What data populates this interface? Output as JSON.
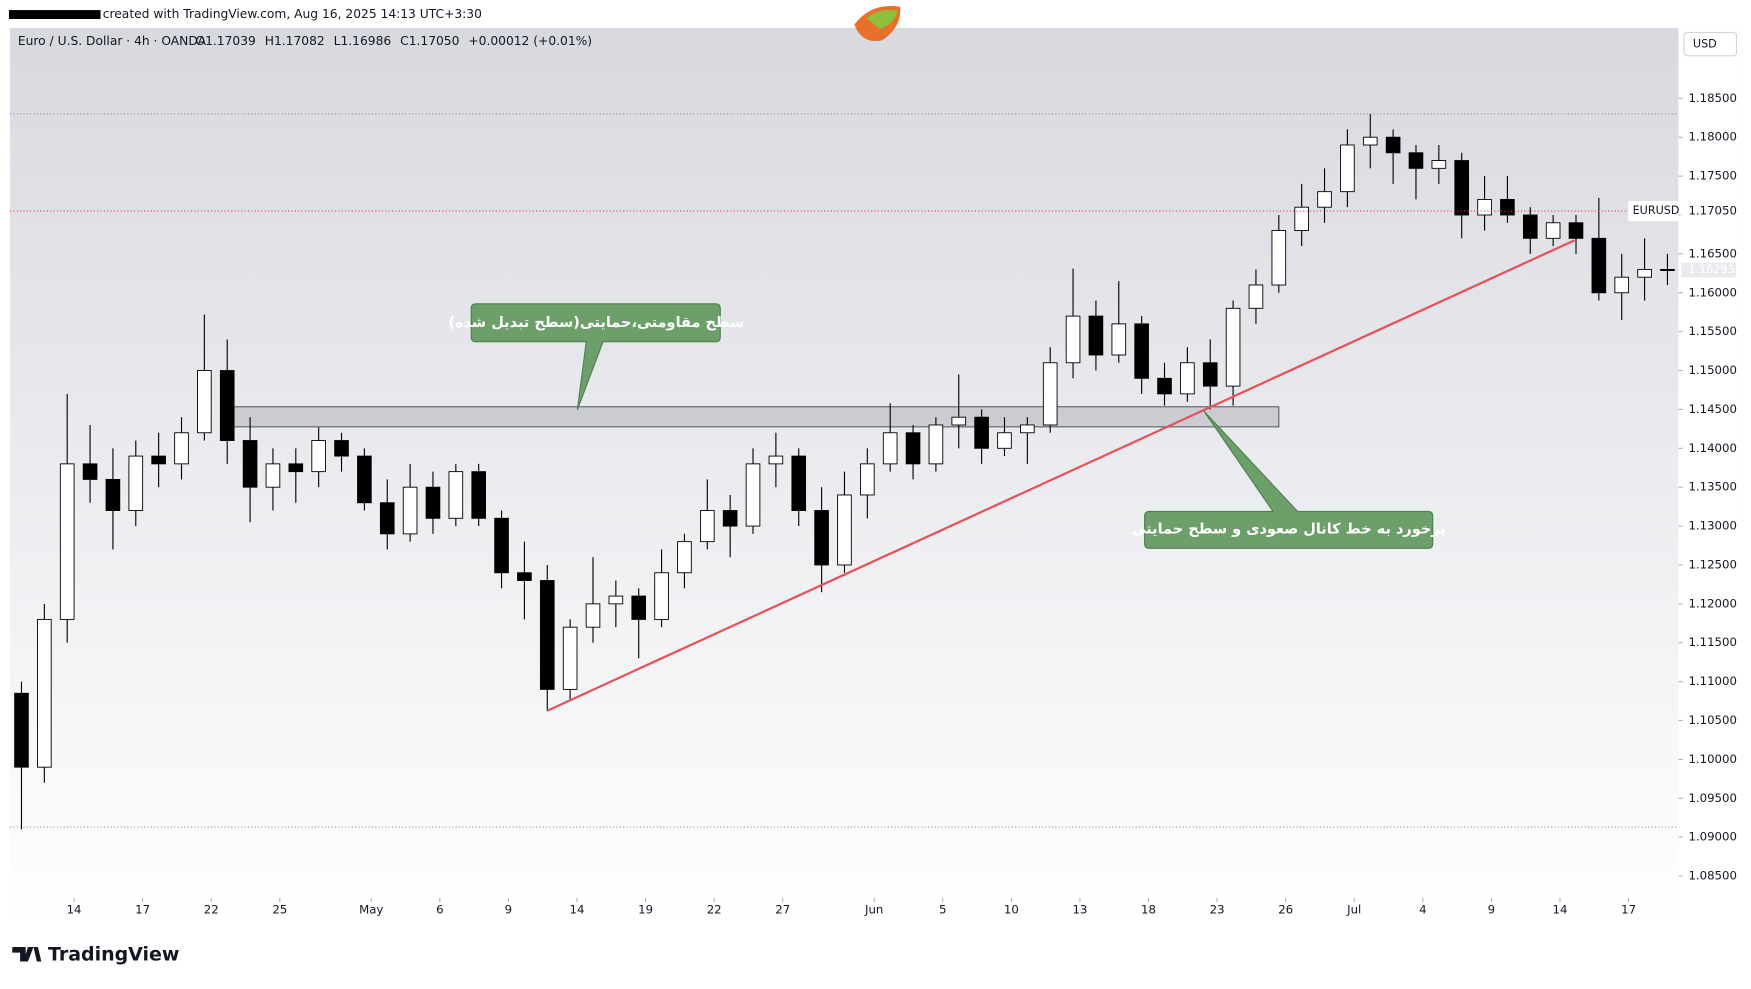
{
  "header": {
    "created": "created with TradingView.com, Aug 16, 2025 14:13 UTC+3:30",
    "brand": "TradingView"
  },
  "chart_data": {
    "type": "candlestick",
    "title": "Euro / U.S. Dollar · 4h · OANDA",
    "ohlc_legend": [
      {
        "value": 1.17039,
        "label": "O1.17039"
      },
      {
        "value": 1.17082,
        "label": "H1.17082"
      },
      {
        "value": 1.16986,
        "label": "L1.16986"
      },
      {
        "value": 1.1705,
        "label": "C1.17050"
      },
      {
        "value": 0.00012,
        "label": "+0.00012 (+0.01%)"
      }
    ],
    "symbol": "EURUSD",
    "currency": "USD",
    "up_color": "#ffffff",
    "down_color": "#000000",
    "wick_color": "#000000",
    "x": [
      0.5,
      1.5,
      2.5,
      3.5,
      4.5,
      5.5,
      6.5,
      7.5,
      8.5,
      9.5,
      10.5,
      11.5,
      12.5,
      13.5,
      14.5,
      15.5,
      16.5,
      17.5,
      18.5,
      19.5,
      20.5,
      21.5,
      22.5,
      23.5,
      24.5,
      25.5,
      26.5,
      27.5,
      28.5,
      29.5,
      30.5,
      31.5,
      32.5,
      33.5,
      34.5,
      35.5,
      36.5,
      37.5,
      38.5,
      39.5,
      40.5,
      41.5,
      42.5,
      43.5,
      44.5,
      45.5,
      46.5,
      47.5,
      48.5,
      49.5,
      50.5,
      51.5,
      52.5,
      53.5,
      54.5,
      55.5,
      56.5,
      57.5,
      58.5,
      59.5,
      60.5,
      61.5,
      62.5,
      63.5,
      64.5,
      65.5,
      66.5,
      67.5,
      68.5,
      69.5,
      70.5,
      71.5,
      72.5
    ],
    "open": [
      1.1085,
      1.099,
      1.118,
      1.138,
      1.136,
      1.132,
      1.139,
      1.138,
      1.142,
      1.15,
      1.141,
      1.135,
      1.138,
      1.137,
      1.141,
      1.139,
      1.133,
      1.129,
      1.135,
      1.131,
      1.137,
      1.131,
      1.124,
      1.123,
      1.109,
      1.117,
      1.12,
      1.121,
      1.118,
      1.124,
      1.128,
      1.132,
      1.13,
      1.138,
      1.139,
      1.132,
      1.125,
      1.134,
      1.138,
      1.142,
      1.138,
      1.143,
      1.144,
      1.14,
      1.142,
      1.143,
      1.151,
      1.157,
      1.152,
      1.156,
      1.149,
      1.147,
      1.151,
      1.148,
      1.158,
      1.161,
      1.168,
      1.171,
      1.173,
      1.179,
      1.18,
      1.178,
      1.176,
      1.177,
      1.17,
      1.172,
      1.17,
      1.167,
      1.169,
      1.167,
      1.16,
      1.162,
      1.163
    ],
    "high": [
      1.11,
      1.12,
      1.147,
      1.143,
      1.14,
      1.141,
      1.142,
      1.144,
      1.1572,
      1.154,
      1.144,
      1.14,
      1.14,
      1.1427,
      1.142,
      1.14,
      1.136,
      1.138,
      1.137,
      1.138,
      1.138,
      1.132,
      1.128,
      1.125,
      1.118,
      1.126,
      1.123,
      1.122,
      1.127,
      1.129,
      1.136,
      1.134,
      1.14,
      1.142,
      1.14,
      1.135,
      1.137,
      1.14,
      1.1458,
      1.143,
      1.144,
      1.1495,
      1.145,
      1.144,
      1.144,
      1.153,
      1.1631,
      1.159,
      1.1615,
      1.157,
      1.151,
      1.153,
      1.154,
      1.159,
      1.163,
      1.17,
      1.174,
      1.176,
      1.181,
      1.183,
      1.181,
      1.179,
      1.179,
      1.178,
      1.175,
      1.175,
      1.171,
      1.17,
      1.17,
      1.1722,
      1.165,
      1.167,
      1.165
    ],
    "low": [
      1.091,
      1.097,
      1.115,
      1.133,
      1.127,
      1.13,
      1.135,
      1.136,
      1.141,
      1.138,
      1.1305,
      1.132,
      1.133,
      1.135,
      1.137,
      1.132,
      1.127,
      1.128,
      1.129,
      1.13,
      1.13,
      1.122,
      1.118,
      1.1062,
      1.1075,
      1.115,
      1.117,
      1.113,
      1.117,
      1.122,
      1.127,
      1.126,
      1.129,
      1.135,
      1.13,
      1.1215,
      1.124,
      1.131,
      1.137,
      1.136,
      1.137,
      1.14,
      1.138,
      1.139,
      1.138,
      1.142,
      1.149,
      1.15,
      1.151,
      1.147,
      1.1455,
      1.146,
      1.145,
      1.1455,
      1.156,
      1.16,
      1.166,
      1.169,
      1.171,
      1.176,
      1.174,
      1.172,
      1.174,
      1.167,
      1.168,
      1.169,
      1.165,
      1.166,
      1.165,
      1.159,
      1.1565,
      1.159,
      1.161
    ],
    "close": [
      1.099,
      1.118,
      1.138,
      1.136,
      1.132,
      1.139,
      1.138,
      1.142,
      1.15,
      1.141,
      1.135,
      1.138,
      1.137,
      1.141,
      1.139,
      1.133,
      1.129,
      1.135,
      1.131,
      1.137,
      1.131,
      1.124,
      1.123,
      1.109,
      1.117,
      1.12,
      1.121,
      1.118,
      1.124,
      1.128,
      1.132,
      1.13,
      1.138,
      1.139,
      1.132,
      1.125,
      1.134,
      1.138,
      1.142,
      1.138,
      1.143,
      1.144,
      1.14,
      1.142,
      1.143,
      1.151,
      1.157,
      1.152,
      1.156,
      1.149,
      1.147,
      1.151,
      1.148,
      1.158,
      1.161,
      1.168,
      1.171,
      1.173,
      1.179,
      1.18,
      1.178,
      1.176,
      1.177,
      1.17,
      1.172,
      1.17,
      1.167,
      1.169,
      1.167,
      1.16,
      1.162,
      1.163,
      1.1629
    ],
    "xlim": [
      0,
      72.98
    ],
    "xticks": [
      {
        "value": 2.8,
        "label": "14"
      },
      {
        "value": 5.8,
        "label": "17"
      },
      {
        "value": 8.8,
        "label": "22"
      },
      {
        "value": 11.8,
        "label": "25"
      },
      {
        "value": 15.8,
        "label": "May"
      },
      {
        "value": 18.8,
        "label": "6"
      },
      {
        "value": 21.8,
        "label": "9"
      },
      {
        "value": 24.8,
        "label": "14"
      },
      {
        "value": 27.8,
        "label": "19"
      },
      {
        "value": 30.8,
        "label": "22"
      },
      {
        "value": 33.8,
        "label": "27"
      },
      {
        "value": 37.8,
        "label": "Jun"
      },
      {
        "value": 40.8,
        "label": "5"
      },
      {
        "value": 43.8,
        "label": "10"
      },
      {
        "value": 46.8,
        "label": "13"
      },
      {
        "value": 49.8,
        "label": "18"
      },
      {
        "value": 52.8,
        "label": "23"
      },
      {
        "value": 55.8,
        "label": "26"
      },
      {
        "value": 58.8,
        "label": "Jul"
      },
      {
        "value": 61.8,
        "label": "4"
      },
      {
        "value": 64.8,
        "label": "9"
      },
      {
        "value": 67.8,
        "label": "14"
      },
      {
        "value": 70.8,
        "label": "17"
      }
    ],
    "ylim": [
      1.08277,
      1.19405
    ],
    "yticks": [
      {
        "value": 1.085,
        "label": "1.08500"
      },
      {
        "value": 1.09,
        "label": "1.09000"
      },
      {
        "value": 1.095,
        "label": "1.09500"
      },
      {
        "value": 1.1,
        "label": "1.10000"
      },
      {
        "value": 1.105,
        "label": "1.10500"
      },
      {
        "value": 1.11,
        "label": "1.11000"
      },
      {
        "value": 1.115,
        "label": "1.11500"
      },
      {
        "value": 1.12,
        "label": "1.12000"
      },
      {
        "value": 1.125,
        "label": "1.12500"
      },
      {
        "value": 1.13,
        "label": "1.13000"
      },
      {
        "value": 1.135,
        "label": "1.13500"
      },
      {
        "value": 1.14,
        "label": "1.14000"
      },
      {
        "value": 1.145,
        "label": "1.14500"
      },
      {
        "value": 1.15,
        "label": "1.15000"
      },
      {
        "value": 1.155,
        "label": "1.15500"
      },
      {
        "value": 1.16,
        "label": "1.16000"
      },
      {
        "value": 1.165,
        "label": "1.16500"
      },
      {
        "value": 1.17,
        "label": "1.17000"
      },
      {
        "value": 1.175,
        "label": "1.17500"
      },
      {
        "value": 1.18,
        "label": "1.18000"
      },
      {
        "value": 1.185,
        "label": "1.18500"
      }
    ],
    "current_price": {
      "value": 1.1705,
      "label": "1.17050",
      "color": "#f23645"
    },
    "marker_price": {
      "value": 1.16293,
      "label": "1.16293"
    },
    "price_lines": [
      1.183,
      1.0913
    ],
    "zone": {
      "x": [
        9.57,
        55.5
      ],
      "y": [
        1.14276,
        1.14534
      ],
      "color": "#9598a1"
    },
    "trendline": {
      "x": [
        23.5,
        68.44
      ],
      "y": [
        1.10626,
        1.16675
      ],
      "color": "#e8505b"
    },
    "annotations": [
      {
        "text": "سطح مقاومتی،حمایتی(سطح تبدیل شده)"
      },
      {
        "text": "برخورد به خط کانال صعودی و سطح حمایتی"
      }
    ]
  }
}
